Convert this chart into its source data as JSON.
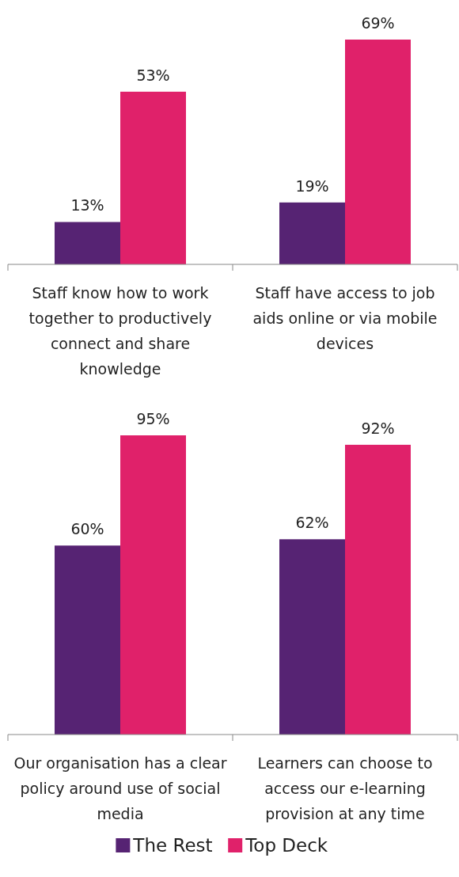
{
  "chart_data": [
    {
      "type": "bar",
      "categories": [
        "Staff know how to work together to productively connect and share knowledge",
        "Staff have access to job aids online or via mobile devices"
      ],
      "series": [
        {
          "color": "#562373",
          "values": [
            13,
            19
          ],
          "value_labels": [
            "13%",
            "19%"
          ]
        },
        {
          "color": "#e0216a",
          "values": [
            53,
            69
          ],
          "value_labels": [
            "53%",
            "69%"
          ]
        }
      ]
    },
    {
      "type": "bar",
      "categories": [
        "Our organisation has a clear policy around use of social media",
        "Learners can choose to access our e-learning provision at any time"
      ],
      "series": [
        {
          "name": "The Rest",
          "color": "#562373",
          "values": [
            60,
            62
          ],
          "value_labels": [
            "60%",
            "62%"
          ]
        },
        {
          "name": "Top Deck",
          "color": "#e0216a",
          "values": [
            95,
            92
          ],
          "value_labels": [
            "95%",
            "92%"
          ]
        }
      ],
      "legend": "bottom"
    }
  ]
}
